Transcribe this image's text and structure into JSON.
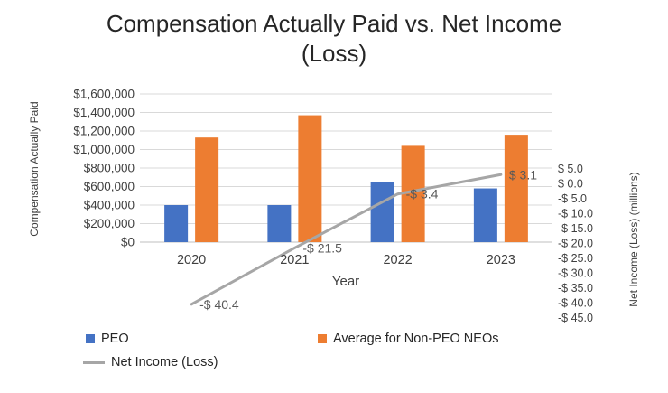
{
  "title": {
    "line1": "Compensation Actually Paid vs. Net Income",
    "line2": "(Loss)"
  },
  "chart_data": {
    "type": "combo-bar-line",
    "title": "Compensation Actually Paid vs. Net Income (Loss)",
    "xlabel": "Year",
    "categories": [
      "2020",
      "2021",
      "2022",
      "2023"
    ],
    "bar_series": [
      {
        "name": "PEO",
        "color": "#4472C4",
        "axis": "left",
        "values": [
          400000,
          400000,
          650000,
          580000
        ]
      },
      {
        "name": "Average for Non-PEO NEOs",
        "color": "#ED7D31",
        "axis": "left",
        "values": [
          1130000,
          1370000,
          1040000,
          1160000
        ]
      }
    ],
    "line_series": {
      "name": "Net Income (Loss)",
      "color": "#A6A6A6",
      "axis": "right",
      "values": [
        -40.4,
        -21.5,
        -3.4,
        3.1
      ],
      "data_labels": [
        "-$ 40.4",
        "-$ 21.5",
        "-$ 3.4",
        "$ 3.1"
      ]
    },
    "left_axis": {
      "label": "Compensation Actually Paid",
      "min": 0,
      "max": 1600000,
      "step": 200000,
      "tick_labels": [
        "$1,600,000",
        "$1,400,000",
        "$1,200,000",
        "$1,000,000",
        "$800,000",
        "$600,000",
        "$400,000",
        "$200,000",
        "$0"
      ]
    },
    "right_axis": {
      "label": "Net Income (Loss) (millions)",
      "min": -45,
      "max": 5,
      "step": 5,
      "tick_labels": [
        "$ 5.0",
        "$ 0.0",
        "-$ 5.0",
        "-$ 10.0",
        "-$ 15.0",
        "-$ 20.0",
        "-$ 25.0",
        "-$ 30.0",
        "-$ 35.0",
        "-$ 40.0",
        "-$ 45.0"
      ]
    },
    "gridlines": true,
    "legend_position": "bottom",
    "colors": {
      "gridline": "#D9D9D9",
      "axis_line": "#BFBFBF",
      "tick_text": "#404040",
      "data_label_text": "#595959"
    }
  }
}
